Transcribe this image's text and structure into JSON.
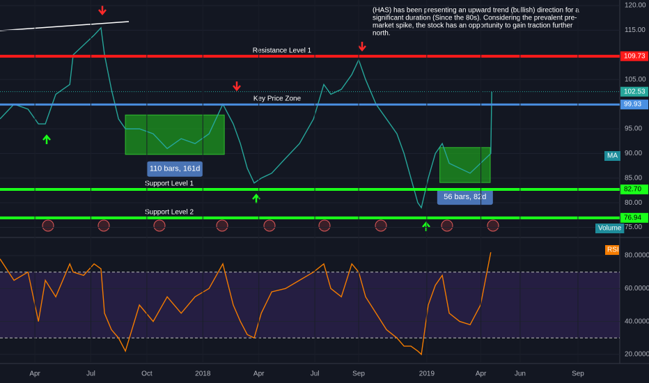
{
  "chart_data": [
    {
      "type": "line",
      "annotation": [
        "(HAS) has been presenting an upward trend (bullish) direction for a",
        "significant duration (Since the 80s). Considering the prevalent pre-",
        "market spike, the stock has an opportunity to gain traction further",
        "north."
      ],
      "x": [
        1.13,
        1.88,
        2.63,
        3.19,
        3.56,
        4.12,
        4.87,
        5.05,
        5.61,
        6.17,
        6.54,
        6.73,
        7.1,
        7.48,
        7.85,
        8.6,
        9.34,
        10.09,
        10.84,
        11.58,
        12.33,
        13.07,
        13.63,
        14.01,
        14.38,
        14.75,
        15.13,
        15.69,
        16.43,
        17.18,
        17.93,
        18.48,
        18.86,
        19.42,
        19.98,
        20.35,
        20.72,
        21.28,
        21.84,
        22.4,
        22.78,
        23.15,
        23.52,
        23.71,
        24.08,
        24.46,
        24.83,
        25.2,
        25.76,
        26.32,
        26.88,
        27.43,
        27.48
      ],
      "series": [
        {
          "color": "#26a69a",
          "values": [
            97,
            100,
            99,
            96,
            96,
            102,
            104,
            110,
            112,
            114,
            115.5,
            110,
            103,
            97,
            95,
            95,
            94,
            91,
            93,
            92,
            94,
            100,
            96,
            92,
            87,
            84,
            85,
            86,
            89,
            92,
            97,
            104,
            102,
            103,
            106,
            109,
            105,
            100,
            97,
            94,
            90,
            85,
            80,
            79,
            85,
            90,
            92,
            88,
            87,
            86,
            88,
            90,
            102.53
          ]
        }
      ],
      "current_price": 102.53,
      "levels": [
        {
          "name": "Resistance Level 1",
          "value": 109.73,
          "color": "#ff1a1a"
        },
        {
          "name": "Key Price Zone",
          "value": 99.93,
          "color": "#4a90e2"
        },
        {
          "name": "Support Level 1",
          "value": 82.7,
          "value_label": "82.70",
          "color": "#1aff1a"
        },
        {
          "name": "Support Level 2",
          "value": 76.94,
          "color": "#1aff1a"
        }
      ],
      "zones": [
        {
          "label": "110 bars, 161d",
          "x": [
            7.85,
            13.15
          ],
          "y": [
            89.8,
            97.8
          ]
        },
        {
          "label": "56 bars, 82d",
          "x": [
            24.7,
            27.4
          ],
          "y": [
            84.1,
            91.2
          ]
        }
      ],
      "indicators": [
        "MA",
        "Volume"
      ],
      "xlim": [
        1.13,
        34.34
      ],
      "ylim": [
        73.1,
        121.13
      ],
      "yticks": [
        {
          "value": 120,
          "label": "120.00"
        },
        {
          "value": 115,
          "label": "115.00"
        },
        {
          "value": 105,
          "label": "105.00"
        },
        {
          "value": 95,
          "label": "95.00"
        },
        {
          "value": 90,
          "label": "90.00"
        },
        {
          "value": 85,
          "label": "85.00"
        },
        {
          "value": 80,
          "label": "80.00"
        },
        {
          "value": 75,
          "label": "75.00"
        }
      ]
    },
    {
      "type": "line",
      "name": "RSI",
      "x": [
        1.13,
        1.88,
        2.63,
        3.19,
        3.56,
        4.12,
        4.87,
        5.05,
        5.61,
        6.17,
        6.54,
        6.73,
        7.1,
        7.48,
        7.85,
        8.6,
        9.34,
        10.09,
        10.84,
        11.58,
        12.33,
        13.07,
        13.63,
        14.01,
        14.38,
        14.75,
        15.13,
        15.69,
        16.43,
        17.18,
        17.93,
        18.48,
        18.86,
        19.42,
        19.98,
        20.35,
        20.72,
        21.28,
        21.84,
        22.4,
        22.78,
        23.15,
        23.52,
        23.71,
        24.08,
        24.46,
        24.83,
        25.2,
        25.76,
        26.32,
        26.88,
        27.43
      ],
      "series": [
        {
          "color": "#f57c00",
          "values": [
            78,
            65,
            70,
            40,
            65,
            55,
            75,
            70,
            68,
            75,
            72,
            45,
            35,
            30,
            22,
            50,
            40,
            55,
            45,
            55,
            60,
            75,
            50,
            40,
            32,
            30,
            45,
            58,
            60,
            65,
            70,
            75,
            60,
            55,
            75,
            70,
            55,
            45,
            35,
            30,
            25,
            25,
            22,
            20,
            50,
            62,
            68,
            45,
            40,
            38,
            50,
            82
          ]
        }
      ],
      "levels": [
        70,
        30
      ],
      "xlim": [
        1.13,
        34.34
      ],
      "ylim": [
        15.3,
        90.6
      ],
      "yticks": [
        {
          "value": 80,
          "label": "80.0000"
        },
        {
          "value": 60,
          "label": "60.0000"
        },
        {
          "value": 40,
          "label": "40.0000"
        },
        {
          "value": 20,
          "label": "20.0000"
        }
      ],
      "xticks": [
        {
          "value": 3,
          "label": "Apr"
        },
        {
          "value": 6,
          "label": "Jul"
        },
        {
          "value": 9,
          "label": "Oct"
        },
        {
          "value": 12,
          "label": "2018"
        },
        {
          "value": 15,
          "label": "Apr"
        },
        {
          "value": 18,
          "label": "Jul"
        },
        {
          "value": 20.35,
          "label": "Sep"
        },
        {
          "value": 24,
          "label": "2019"
        },
        {
          "value": 26.9,
          "label": "Apr"
        },
        {
          "value": 29,
          "label": "Jun"
        },
        {
          "value": 32.1,
          "label": "Sep"
        }
      ]
    }
  ]
}
